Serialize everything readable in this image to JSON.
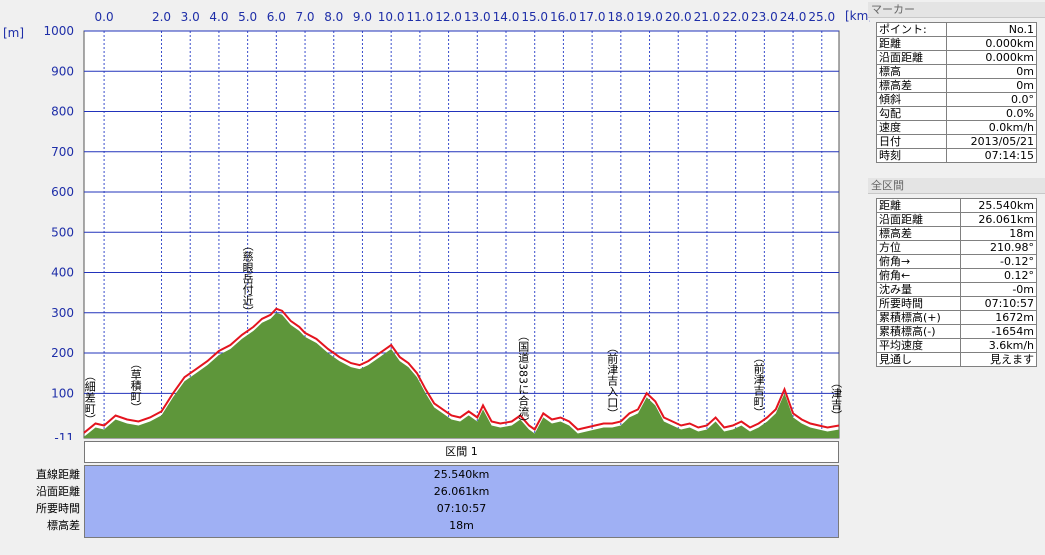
{
  "chart_data": {
    "type": "area",
    "x_unit_label": "[km]",
    "y_unit_label": "[m]",
    "xlim": [
      -0.7,
      25.6
    ],
    "ylim": [
      -11,
      1000
    ],
    "x_ticks": [
      "0.0",
      "2.0",
      "3.0",
      "4.0",
      "5.0",
      "6.0",
      "7.0",
      "8.0",
      "9.0",
      "10.0",
      "11.0",
      "12.0",
      "13.0",
      "14.0",
      "15.0",
      "16.0",
      "17.0",
      "18.0",
      "19.0",
      "20.0",
      "21.0",
      "22.0",
      "23.0",
      "24.0",
      "25.0"
    ],
    "y_ticks": [
      "1000",
      "900",
      "800",
      "700",
      "600",
      "500",
      "400",
      "300",
      "200",
      "100",
      "-11"
    ],
    "grid": true,
    "series": [
      {
        "color": "#e4141e",
        "x": [
          -0.7,
          -0.3,
          0.0,
          0.4,
          0.8,
          1.2,
          1.6,
          2.0,
          2.4,
          2.8,
          3.2,
          3.6,
          4.0,
          4.4,
          4.8,
          5.2,
          5.5,
          5.8,
          6.0,
          6.2,
          6.5,
          6.8,
          7.0,
          7.4,
          7.8,
          8.2,
          8.6,
          8.9,
          9.2,
          9.6,
          10.0,
          10.3,
          10.6,
          10.9,
          11.2,
          11.5,
          11.8,
          12.1,
          12.4,
          12.7,
          13.0,
          13.2,
          13.5,
          13.8,
          14.2,
          14.5,
          14.8,
          15.0,
          15.3,
          15.6,
          15.9,
          16.2,
          16.5,
          16.8,
          17.1,
          17.4,
          17.7,
          18.0,
          18.3,
          18.6,
          18.9,
          19.2,
          19.5,
          19.8,
          20.1,
          20.4,
          20.7,
          21.0,
          21.3,
          21.6,
          21.9,
          22.2,
          22.5,
          22.8,
          23.1,
          23.4,
          23.7,
          24.0,
          24.3,
          24.6,
          24.9,
          25.2,
          25.6
        ],
        "values": [
          2,
          25,
          20,
          45,
          35,
          30,
          40,
          55,
          100,
          140,
          160,
          180,
          205,
          220,
          245,
          265,
          285,
          295,
          310,
          305,
          280,
          265,
          250,
          235,
          210,
          190,
          175,
          170,
          180,
          200,
          220,
          190,
          175,
          150,
          110,
          75,
          60,
          45,
          40,
          55,
          40,
          70,
          30,
          25,
          30,
          45,
          20,
          10,
          50,
          35,
          40,
          30,
          10,
          15,
          20,
          25,
          25,
          30,
          50,
          60,
          100,
          80,
          40,
          30,
          20,
          25,
          15,
          20,
          40,
          15,
          20,
          30,
          15,
          25,
          40,
          60,
          110,
          50,
          35,
          25,
          20,
          15,
          20
        ]
      }
    ],
    "landmarks": [
      {
        "km": -0.5,
        "label": "細差町"
      },
      {
        "km": 1.1,
        "label": "草積町"
      },
      {
        "km": 5.0,
        "label": "慈眼岳付近"
      },
      {
        "km": 14.6,
        "label": "国道383に合流"
      },
      {
        "km": 17.7,
        "label": "前津吉入口"
      },
      {
        "km": 22.8,
        "label": "前津吉町"
      },
      {
        "km": 25.5,
        "label": "津吉"
      }
    ]
  },
  "marker_panel": {
    "header": "マーカー",
    "rows": [
      {
        "label": "ポイント:",
        "value": "No.1"
      },
      {
        "label": "距離",
        "value": "0.000km"
      },
      {
        "label": "沿面距離",
        "value": "0.000km"
      },
      {
        "label": "標高",
        "value": "0m"
      },
      {
        "label": "標高差",
        "value": "0m"
      },
      {
        "label": "傾斜",
        "value": "0.0°"
      },
      {
        "label": "勾配",
        "value": "0.0%"
      },
      {
        "label": "速度",
        "value": "0.0km/h"
      },
      {
        "label": "日付",
        "value": "2013/05/21"
      },
      {
        "label": "時刻",
        "value": "07:14:15"
      }
    ]
  },
  "total_panel": {
    "header": "全区間",
    "rows": [
      {
        "label": "距離",
        "value": "25.540km"
      },
      {
        "label": "沿面距離",
        "value": "26.061km"
      },
      {
        "label": "標高差",
        "value": "18m"
      },
      {
        "label": "方位",
        "value": "210.98°"
      },
      {
        "label": "俯角→",
        "value": "-0.12°"
      },
      {
        "label": "俯角←",
        "value": "0.12°"
      },
      {
        "label": "沈み量",
        "value": "-0m"
      },
      {
        "label": "所要時間",
        "value": "07:10:57"
      },
      {
        "label": "累積標高(+)",
        "value": "1672m"
      },
      {
        "label": "累積標高(-)",
        "value": "-1654m"
      },
      {
        "label": "平均速度",
        "value": "3.6km/h"
      },
      {
        "label": "見通し",
        "value": "見えます"
      }
    ]
  },
  "section": {
    "title": "区間 1",
    "labels": [
      "直線距離",
      "沿面距離",
      "所要時間",
      "標高差"
    ],
    "values": [
      "25.540km",
      "26.061km",
      "07:10:57",
      "18m"
    ]
  }
}
